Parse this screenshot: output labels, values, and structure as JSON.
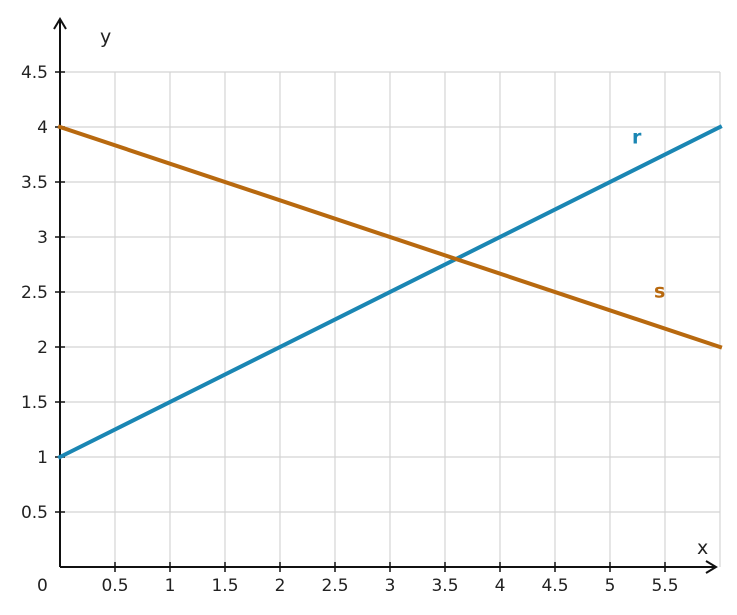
{
  "chart_data": {
    "type": "line",
    "title": "",
    "xlabel": "x",
    "ylabel": "y",
    "origin_label": "0",
    "xlim": [
      0,
      6
    ],
    "ylim": [
      0,
      5
    ],
    "grid": true,
    "x_ticks": [
      {
        "value": 0.5,
        "label": "0.5"
      },
      {
        "value": 1,
        "label": "1"
      },
      {
        "value": 1.5,
        "label": "1.5"
      },
      {
        "value": 2,
        "label": "2"
      },
      {
        "value": 2.5,
        "label": "2.5"
      },
      {
        "value": 3,
        "label": "3"
      },
      {
        "value": 3.5,
        "label": "3.5"
      },
      {
        "value": 4,
        "label": "4"
      },
      {
        "value": 4.5,
        "label": "4.5"
      },
      {
        "value": 5,
        "label": "5"
      },
      {
        "value": 5.5,
        "label": "5.5"
      }
    ],
    "y_ticks": [
      {
        "value": 0.5,
        "label": "0.5"
      },
      {
        "value": 1,
        "label": "1"
      },
      {
        "value": 1.5,
        "label": "1.5"
      },
      {
        "value": 2,
        "label": "2"
      },
      {
        "value": 2.5,
        "label": "2.5"
      },
      {
        "value": 3,
        "label": "3"
      },
      {
        "value": 3.5,
        "label": "3.5"
      },
      {
        "value": 4,
        "label": "4"
      },
      {
        "value": 4.5,
        "label": "4.5"
      }
    ],
    "series": [
      {
        "name": "r",
        "color": "#1a86b3",
        "x": [
          0,
          6
        ],
        "y": [
          1,
          4
        ],
        "label_at": [
          5.2,
          3.85
        ]
      },
      {
        "name": "s",
        "color": "#b8690f",
        "x": [
          0,
          6
        ],
        "y": [
          4,
          2
        ],
        "label_at": [
          5.4,
          2.45
        ]
      }
    ],
    "grid_color": "#d4d4d4",
    "axis_color": "#111111"
  }
}
